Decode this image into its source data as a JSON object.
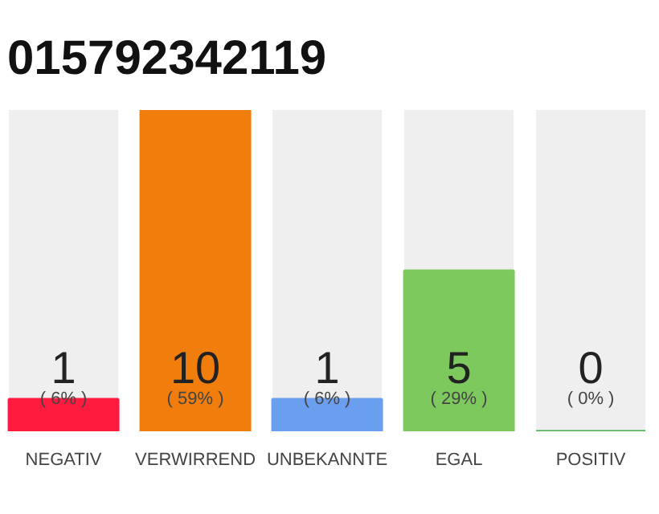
{
  "chart_data": {
    "type": "bar",
    "title": "015792342119",
    "categories": [
      "NEGATIV",
      "VERWIRREND",
      "UNBEKANNTE",
      "EGAL",
      "POSITIV"
    ],
    "values": [
      1,
      10,
      1,
      5,
      0
    ],
    "colors": [
      "#ff1a40",
      "#f07d0c",
      "#6a9ff0",
      "#7dc95e",
      "#3cb04a"
    ],
    "annotations": [
      "( 6% )",
      "( 59% )",
      "( 6% )",
      "( 29% )",
      "( 0% )"
    ],
    "data_labels": true,
    "tick_labels": "x",
    "grid": false
  }
}
